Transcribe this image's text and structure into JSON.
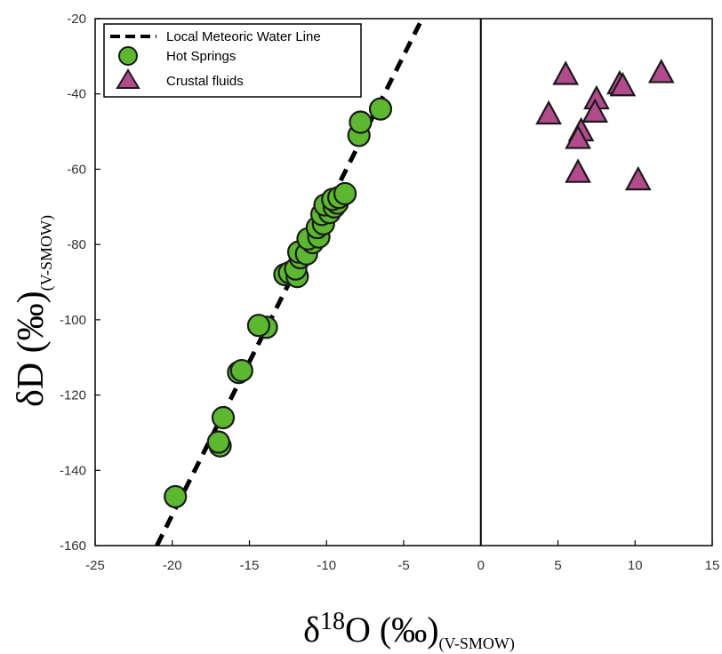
{
  "chart_data": {
    "type": "scatter",
    "title": "",
    "xlabel": {
      "main": "δ",
      "sup": "18",
      "rest": "O (‰)",
      "sub": "(V-SMOW)"
    },
    "ylabel": {
      "main": "δD (‰)",
      "sub": "(V-SMOW)"
    },
    "xlim": [
      -25,
      15
    ],
    "ylim": [
      -160,
      -20
    ],
    "xticks": [
      -25,
      -20,
      -15,
      -10,
      -5,
      0,
      5,
      10,
      15
    ],
    "yticks": [
      -20,
      -40,
      -60,
      -80,
      -100,
      -120,
      -140,
      -160
    ],
    "grid": false,
    "vertical_reference_line_x": 0,
    "legend_position": "top-left",
    "colors": {
      "hot_springs": "#5cb82e",
      "crustal_fluids": "#b34a8c",
      "lmwl": "#000000"
    },
    "lmwl": {
      "name": "Local Meteoric Water Line",
      "style": "dashed",
      "points": [
        [
          -21,
          -160
        ],
        [
          -3.8,
          -20
        ]
      ]
    },
    "series": [
      {
        "name": "Hot Springs",
        "marker": "circle",
        "points": [
          [
            -19.8,
            -147
          ],
          [
            -16.9,
            -133.5
          ],
          [
            -17.0,
            -132.5
          ],
          [
            -16.7,
            -126
          ],
          [
            -15.7,
            -114
          ],
          [
            -15.5,
            -113.5
          ],
          [
            -13.9,
            -102
          ],
          [
            -14.4,
            -101.5
          ],
          [
            -12.7,
            -88
          ],
          [
            -12.4,
            -87.5
          ],
          [
            -11.9,
            -88.5
          ],
          [
            -12.0,
            -86.5
          ],
          [
            -11.7,
            -83.5
          ],
          [
            -11.8,
            -82
          ],
          [
            -11.3,
            -82.5
          ],
          [
            -10.9,
            -79.5
          ],
          [
            -11.2,
            -78.5
          ],
          [
            -10.5,
            -78
          ],
          [
            -10.6,
            -75.5
          ],
          [
            -10.2,
            -74.5
          ],
          [
            -10.3,
            -72
          ],
          [
            -9.8,
            -71.5
          ],
          [
            -10.1,
            -69.5
          ],
          [
            -9.5,
            -70
          ],
          [
            -9.3,
            -69
          ],
          [
            -9.6,
            -68
          ],
          [
            -9.2,
            -67.5
          ],
          [
            -8.8,
            -66.5
          ],
          [
            -7.9,
            -51
          ],
          [
            -7.8,
            -47.5
          ],
          [
            -6.5,
            -44
          ]
        ]
      },
      {
        "name": "Crustal fluids",
        "marker": "triangle",
        "points": [
          [
            5.5,
            -35
          ],
          [
            11.7,
            -34.5
          ],
          [
            9.0,
            -37.5
          ],
          [
            9.2,
            -38
          ],
          [
            7.5,
            -41.5
          ],
          [
            7.4,
            -45
          ],
          [
            4.4,
            -45.5
          ],
          [
            6.5,
            -50
          ],
          [
            6.3,
            -52
          ],
          [
            6.3,
            -61
          ],
          [
            10.2,
            -63
          ]
        ]
      }
    ]
  }
}
